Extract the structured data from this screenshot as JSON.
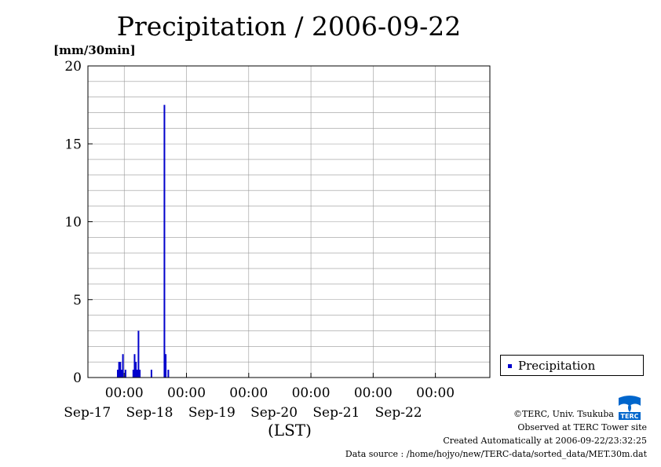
{
  "title": "Precipitation / 2006-09-22",
  "credits": {
    "copyright": "©TERC, Univ. Tsukuba",
    "observed": "Observed at TERC Tower site",
    "created": "Created Automatically at 2006-09-22/23:32:25",
    "source": "Data source : /home/hojyo/new/TERC-data/sorted_data/MET.30m.dat"
  },
  "logo": {
    "name": "terc-logo",
    "text": "TERC",
    "color": "#0055bb"
  },
  "chart_data": {
    "type": "bar",
    "title": "Precipitation / 2006-09-22",
    "ylabel": "[mm/30min]",
    "xlabel": "(LST)",
    "ylim": [
      0,
      20
    ],
    "xlim": [
      "2006-09-16 10:00",
      "2006-09-22 21:00"
    ],
    "y_ticks": [
      "0",
      "5",
      "10",
      "15",
      "20"
    ],
    "x_ticks": [
      {
        "time": "2006-09-17 00:00",
        "time_label": "00:00",
        "date_label": "Sep-17"
      },
      {
        "time": "2006-09-18 00:00",
        "time_label": "00:00",
        "date_label": "Sep-18"
      },
      {
        "time": "2006-09-19 00:00",
        "time_label": "00:00",
        "date_label": "Sep-19"
      },
      {
        "time": "2006-09-20 00:00",
        "time_label": "00:00",
        "date_label": "Sep-20"
      },
      {
        "time": "2006-09-21 00:00",
        "time_label": "00:00",
        "date_label": "Sep-21"
      },
      {
        "time": "2006-09-22 00:00",
        "time_label": "00:00",
        "date_label": "Sep-22"
      }
    ],
    "grid": true,
    "legend_position": "bottom-right, outside plot",
    "series": [
      {
        "name": "Precipitation",
        "color": "#0000cc",
        "points": [
          {
            "x": "2006-09-16 21:30",
            "y": 0.5
          },
          {
            "x": "2006-09-16 22:00",
            "y": 1.0
          },
          {
            "x": "2006-09-16 22:30",
            "y": 1.0
          },
          {
            "x": "2006-09-16 23:00",
            "y": 0.5
          },
          {
            "x": "2006-09-16 23:30",
            "y": 1.5
          },
          {
            "x": "2006-09-17 00:30",
            "y": 0.5
          },
          {
            "x": "2006-09-17 03:30",
            "y": 0.5
          },
          {
            "x": "2006-09-17 04:00",
            "y": 1.5
          },
          {
            "x": "2006-09-17 04:30",
            "y": 1.0
          },
          {
            "x": "2006-09-17 05:00",
            "y": 0.5
          },
          {
            "x": "2006-09-17 05:30",
            "y": 3.0
          },
          {
            "x": "2006-09-17 06:00",
            "y": 0.5
          },
          {
            "x": "2006-09-17 10:30",
            "y": 0.5
          },
          {
            "x": "2006-09-17 15:30",
            "y": 17.5
          },
          {
            "x": "2006-09-17 16:00",
            "y": 1.5
          },
          {
            "x": "2006-09-17 17:00",
            "y": 0.5
          }
        ]
      }
    ]
  }
}
